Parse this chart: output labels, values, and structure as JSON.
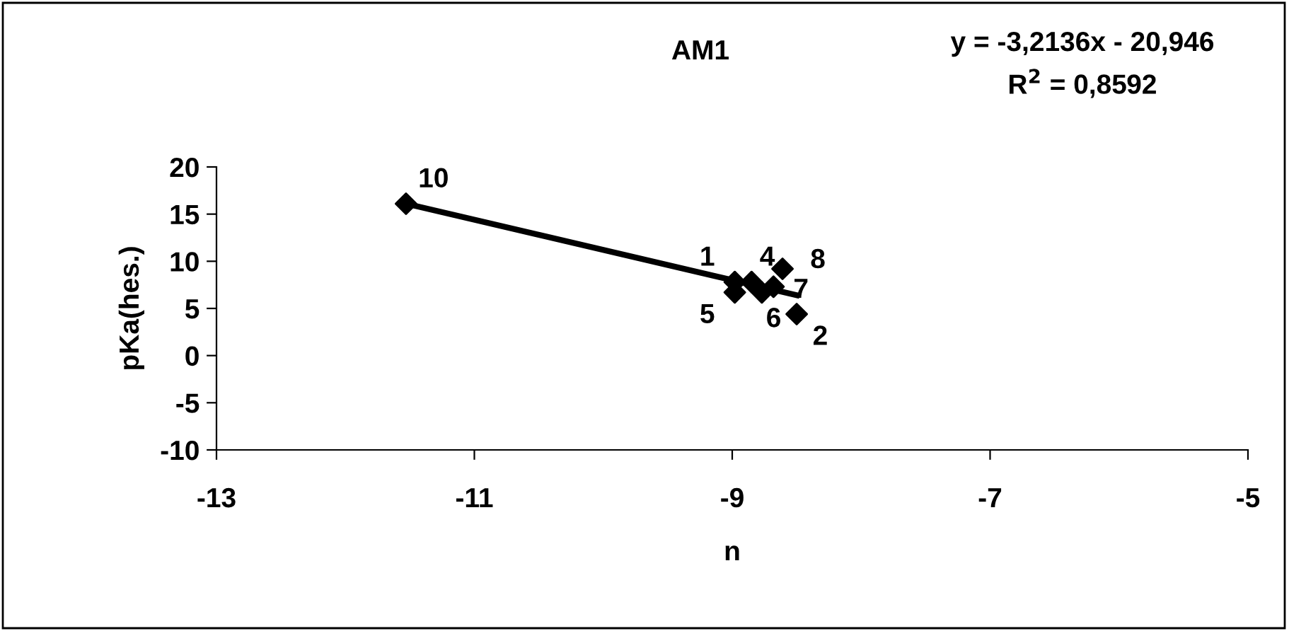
{
  "chart_data": {
    "type": "scatter",
    "title": "AM1",
    "xlabel": "n",
    "ylabel": "pKa(hes.)",
    "x": [
      -8.98,
      -8.5,
      -8.85,
      -8.98,
      -8.77,
      -8.68,
      -8.61,
      -11.53
    ],
    "series": [
      {
        "type": "scatter",
        "color": "#000000",
        "marker": "diamond",
        "values": [
          7.8,
          4.4,
          7.8,
          6.7,
          6.7,
          7.3,
          9.2,
          16.1
        ]
      },
      {
        "type": "line",
        "color": "#000000",
        "marker": "none",
        "line_style": "solid",
        "x": [
          -11.53,
          -8.5
        ],
        "values": [
          16.1,
          6.4
        ]
      }
    ],
    "xlim": [
      -13,
      -5
    ],
    "xticks": [
      -13,
      -11,
      -9,
      -7,
      -5
    ],
    "ylim": [
      -10,
      20
    ],
    "yticks": [
      -10,
      -5,
      0,
      5,
      10,
      15,
      20
    ],
    "grid": false,
    "legend": false,
    "annotations": [
      "y = -3,2136x - 20,946",
      "R$^{2}$ = 0,8592",
      {
        "text": "1",
        "x": -8.98,
        "y": 7.8
      },
      {
        "text": "2",
        "x": -8.5,
        "y": 4.4
      },
      {
        "text": "4",
        "x": -8.85,
        "y": 7.8
      },
      {
        "text": "5",
        "x": -8.98,
        "y": 6.7
      },
      {
        "text": "6",
        "x": -8.77,
        "y": 6.7
      },
      {
        "text": "7",
        "x": -8.68,
        "y": 7.3
      },
      {
        "text": "8",
        "x": -8.61,
        "y": 9.2
      },
      {
        "text": "10",
        "x": -11.53,
        "y": 16.1
      }
    ]
  }
}
